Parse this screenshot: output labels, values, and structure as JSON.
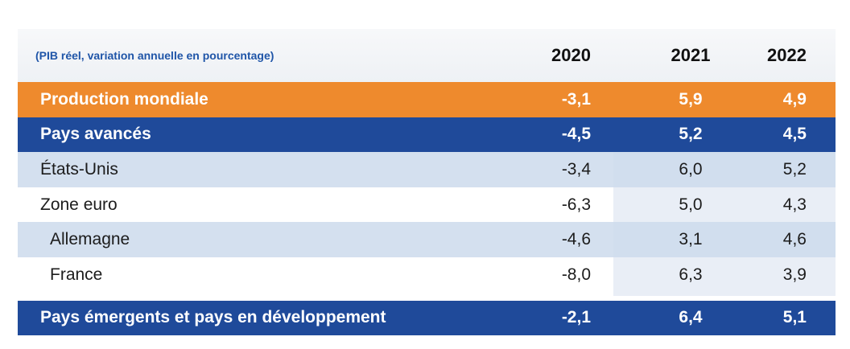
{
  "table": {
    "header": {
      "subtitle": "(PIB réel, variation annuelle en pourcentage)",
      "years": [
        "2020",
        "2021",
        "2022"
      ]
    },
    "rows": [
      {
        "label": "Production mondiale",
        "values": [
          "-3,1",
          "5,9",
          "4,9"
        ]
      },
      {
        "label": "Pays avancés",
        "values": [
          "-4,5",
          "5,2",
          "4,5"
        ]
      },
      {
        "label": "États-Unis",
        "values": [
          "-3,4",
          "6,0",
          "5,2"
        ]
      },
      {
        "label": "Zone euro",
        "values": [
          "-6,3",
          "5,0",
          "4,3"
        ]
      },
      {
        "label": "Allemagne",
        "values": [
          "-4,6",
          "3,1",
          "4,6"
        ]
      },
      {
        "label": "France",
        "values": [
          "-8,0",
          "6,3",
          "3,9"
        ]
      },
      {
        "label": "Pays émergents et pays en développement",
        "values": [
          "-2,1",
          "6,4",
          "5,1"
        ]
      }
    ]
  },
  "colors": {
    "orange": "#ee8a2d",
    "blue": "#1f4a9a",
    "light_blue": "#cddaec"
  }
}
